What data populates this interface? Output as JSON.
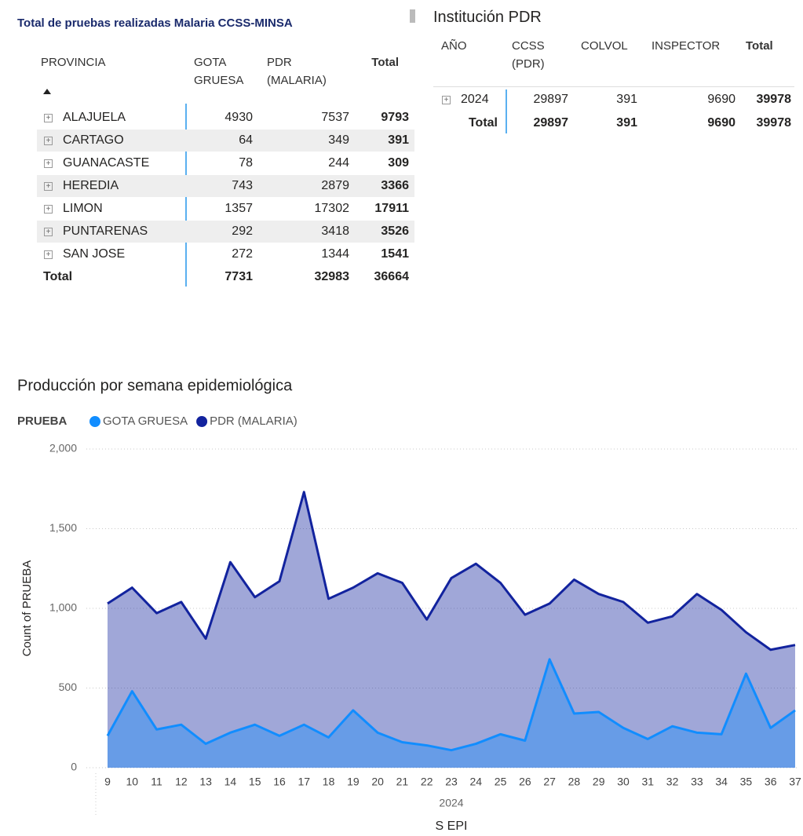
{
  "table1": {
    "title": "Total de pruebas realizadas Malaria CCSS-MINSA",
    "headers": [
      "PROVINCIA",
      "GOTA GRUESA",
      "PDR (MALARIA)",
      "Total"
    ],
    "rows": [
      [
        "ALAJUELA",
        4930,
        7537,
        9793
      ],
      [
        "CARTAGO",
        64,
        349,
        391
      ],
      [
        "GUANACASTE",
        78,
        244,
        309
      ],
      [
        "HEREDIA",
        743,
        2879,
        3366
      ],
      [
        "LIMON",
        1357,
        17302,
        17911
      ],
      [
        "PUNTARENAS",
        292,
        3418,
        3526
      ],
      [
        "SAN JOSE",
        272,
        1344,
        1541
      ]
    ],
    "total": [
      "Total",
      7731,
      32983,
      36664
    ]
  },
  "table2": {
    "title": "Institución PDR",
    "headers": [
      "AÑO",
      "CCSS (PDR)",
      "COLVOL",
      "INSPECTOR",
      "Total"
    ],
    "rows": [
      [
        "2024",
        29897,
        391,
        9690,
        39978
      ]
    ],
    "total": [
      "Total",
      29897,
      391,
      9690,
      39978
    ]
  },
  "chart_data": {
    "type": "area",
    "title": "Producción por semana epidemiológica",
    "legend_title": "PRUEBA",
    "x_label": "S EPI",
    "x_group_label": "2024",
    "y_label": "Count of PRUEBA",
    "categories": [
      "9",
      "10",
      "11",
      "12",
      "13",
      "14",
      "15",
      "16",
      "17",
      "18",
      "19",
      "20",
      "21",
      "22",
      "23",
      "24",
      "25",
      "26",
      "27",
      "28",
      "29",
      "30",
      "31",
      "32",
      "33",
      "34",
      "35",
      "36",
      "37"
    ],
    "series": [
      {
        "name": "GOTA GRUESA",
        "color": "#118DFF",
        "values": [
          200,
          480,
          240,
          270,
          150,
          220,
          270,
          200,
          270,
          190,
          360,
          220,
          160,
          140,
          110,
          150,
          210,
          170,
          680,
          340,
          350,
          250,
          180,
          260,
          220,
          210,
          590,
          250,
          360
        ]
      },
      {
        "name": "PDR (MALARIA)",
        "color": "#12239E",
        "values": [
          1030,
          1130,
          970,
          1040,
          810,
          1290,
          1070,
          1170,
          1730,
          1060,
          1130,
          1220,
          1160,
          930,
          1190,
          1280,
          1160,
          960,
          1030,
          1180,
          1090,
          1040,
          910,
          950,
          1090,
          990,
          850,
          740,
          770
        ]
      }
    ],
    "ylim": [
      0,
      2000
    ],
    "yticks": [
      0,
      500,
      {
        "value": 1000,
        "label": "1,000"
      },
      {
        "value": 1500,
        "label": "1,500"
      },
      {
        "value": 2000,
        "label": "2,000"
      }
    ],
    "grid": true
  }
}
